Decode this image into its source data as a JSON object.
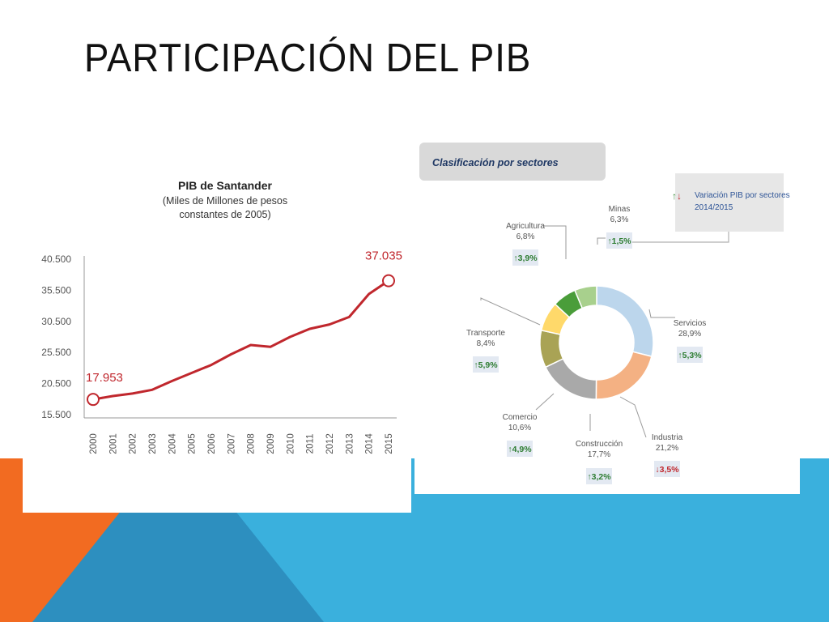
{
  "slide": {
    "title": "PARTICIPACIÓN DEL PIB",
    "colors": {
      "blue": "#3ab0dd",
      "orange": "#f26b21",
      "darkblue": "#2d8fbf"
    }
  },
  "chart_data": [
    {
      "type": "line",
      "title": "PIB de Santander",
      "subtitle": [
        "(Miles de Millones de pesos",
        "constantes de 2005)"
      ],
      "x": [
        "2000",
        "2001",
        "2002",
        "2003",
        "2004",
        "2005",
        "2006",
        "2007",
        "2008",
        "2009",
        "2010",
        "2011",
        "2012",
        "2013",
        "2014",
        "2015"
      ],
      "values": [
        17953,
        18500,
        18900,
        19500,
        20900,
        22200,
        23500,
        25200,
        26700,
        26400,
        28000,
        29300,
        30000,
        31200,
        34900,
        37035
      ],
      "y_ticks": [
        "40.500",
        "35.500",
        "30.500",
        "25.500",
        "20.500",
        "15.500"
      ],
      "ylim": [
        15500,
        40500
      ],
      "annotations": [
        {
          "x": "2000",
          "label": "17.953"
        },
        {
          "x": "2015",
          "label": "37.035"
        }
      ],
      "color": "#c0272d",
      "grid": false
    },
    {
      "type": "pie",
      "variant": "donut",
      "title": "Clasificación por sectores",
      "legend": {
        "arrows": "↑↓",
        "text": [
          "Variación PIB por sectores",
          "2014/2015"
        ],
        "placement": "top-right"
      },
      "slices": [
        {
          "label": "Servicios",
          "value": 28.9,
          "value_label": "28,9%",
          "change": "↑5,3%",
          "trend": "up",
          "color": "#bcd6ec"
        },
        {
          "label": "Industria",
          "value": 21.2,
          "value_label": "21,2%",
          "change": "↓3,5%",
          "trend": "down",
          "color": "#f4b183"
        },
        {
          "label": "Construcción",
          "value": 17.7,
          "value_label": "17,7%",
          "change": "↑3,2%",
          "trend": "up",
          "color": "#a9a9a9"
        },
        {
          "label": "Comercio",
          "value": 10.6,
          "value_label": "10,6%",
          "change": "↑4,9%",
          "trend": "up",
          "color": "#a9a355"
        },
        {
          "label": "Transporte",
          "value": 8.4,
          "value_label": "8,4%",
          "change": "↑5,9%",
          "trend": "up",
          "color": "#ffd96a"
        },
        {
          "label": "Agricultura",
          "value": 6.8,
          "value_label": "6,8%",
          "change": "↑3,9%",
          "trend": "up",
          "color": "#4a9d3a"
        },
        {
          "label": "Minas",
          "value": 6.3,
          "value_label": "6,3%",
          "change": "↑1,5%",
          "trend": "up",
          "color": "#a8d08d"
        }
      ]
    }
  ]
}
